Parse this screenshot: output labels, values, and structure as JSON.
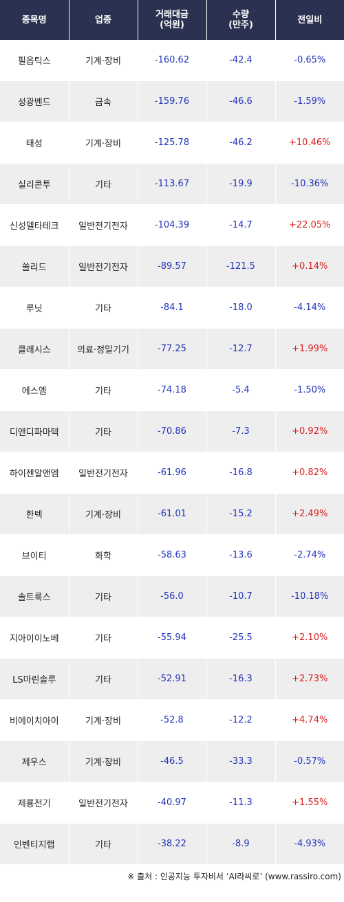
{
  "headers": {
    "name": "종목명",
    "sector": "업종",
    "amount_l1": "거래대금",
    "amount_l2": "(억원)",
    "volume_l1": "수량",
    "volume_l2": "(만주)",
    "change": "전일비"
  },
  "rows": [
    {
      "name": "필옵틱스",
      "sector": "기계·장비",
      "amount": "-160.62",
      "volume": "-42.4",
      "change": "-0.65%"
    },
    {
      "name": "성광벤드",
      "sector": "금속",
      "amount": "-159.76",
      "volume": "-46.6",
      "change": "-1.59%"
    },
    {
      "name": "태성",
      "sector": "기계·장비",
      "amount": "-125.78",
      "volume": "-46.2",
      "change": "+10.46%"
    },
    {
      "name": "실리콘투",
      "sector": "기타",
      "amount": "-113.67",
      "volume": "-19.9",
      "change": "-10.36%"
    },
    {
      "name": "신성델타테크",
      "sector": "일반전기전자",
      "amount": "-104.39",
      "volume": "-14.7",
      "change": "+22.05%"
    },
    {
      "name": "쏠리드",
      "sector": "일반전기전자",
      "amount": "-89.57",
      "volume": "-121.5",
      "change": "+0.14%"
    },
    {
      "name": "루닛",
      "sector": "기타",
      "amount": "-84.1",
      "volume": "-18.0",
      "change": "-4.14%"
    },
    {
      "name": "클래시스",
      "sector": "의료·정밀기기",
      "amount": "-77.25",
      "volume": "-12.7",
      "change": "+1.99%"
    },
    {
      "name": "에스엠",
      "sector": "기타",
      "amount": "-74.18",
      "volume": "-5.4",
      "change": "-1.50%"
    },
    {
      "name": "디앤디파마텍",
      "sector": "기타",
      "amount": "-70.86",
      "volume": "-7.3",
      "change": "+0.92%"
    },
    {
      "name": "하이젠알앤엠",
      "sector": "일반전기전자",
      "amount": "-61.96",
      "volume": "-16.8",
      "change": "+0.82%"
    },
    {
      "name": "한텍",
      "sector": "기계·장비",
      "amount": "-61.01",
      "volume": "-15.2",
      "change": "+2.49%"
    },
    {
      "name": "브이티",
      "sector": "화학",
      "amount": "-58.63",
      "volume": "-13.6",
      "change": "-2.74%"
    },
    {
      "name": "솔트룩스",
      "sector": "기타",
      "amount": "-56.0",
      "volume": "-10.7",
      "change": "-10.18%"
    },
    {
      "name": "지아이이노베",
      "sector": "기타",
      "amount": "-55.94",
      "volume": "-25.5",
      "change": "+2.10%"
    },
    {
      "name": "LS마린솔루",
      "sector": "기타",
      "amount": "-52.91",
      "volume": "-16.3",
      "change": "+2.73%"
    },
    {
      "name": "비에이치아이",
      "sector": "기계·장비",
      "amount": "-52.8",
      "volume": "-12.2",
      "change": "+4.74%"
    },
    {
      "name": "제우스",
      "sector": "기계·장비",
      "amount": "-46.5",
      "volume": "-33.3",
      "change": "-0.57%"
    },
    {
      "name": "제룡전기",
      "sector": "일반전기전자",
      "amount": "-40.97",
      "volume": "-11.3",
      "change": "+1.55%"
    },
    {
      "name": "인벤티지랩",
      "sector": "기타",
      "amount": "-38.22",
      "volume": "-8.9",
      "change": "-4.93%"
    }
  ],
  "source": "※ 출처 : 인공지능 투자비서 ‘AI라씨로’ (www.rassiro.com)",
  "colors": {
    "header_bg": "#2b3150",
    "negative": "#2233bb",
    "positive": "#d81f1f",
    "stripe": "#eeeeee"
  }
}
